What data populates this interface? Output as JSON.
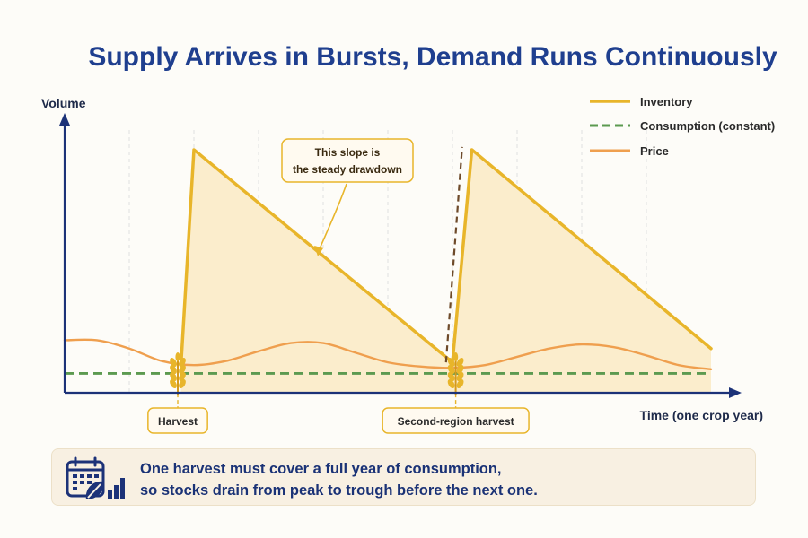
{
  "chart_data": {
    "type": "line",
    "title": "Supply Arrives in Bursts, Demand Runs Continuously",
    "ylabel": "Volume",
    "xlabel": "Time (one crop year)",
    "x_range": [
      0,
      10
    ],
    "y_range": [
      0,
      10
    ],
    "grid": "vertical dashed",
    "legend_position": "top-right",
    "series": [
      {
        "name": "Inventory",
        "style": "solid",
        "color": "#e8b52a",
        "points": [
          [
            1.8,
            1.0
          ],
          [
            2.0,
            8.8
          ],
          [
            6.0,
            1.1
          ],
          [
            6.3,
            8.8
          ],
          [
            10.0,
            1.6
          ]
        ]
      },
      {
        "name": "Consumption (constant)",
        "style": "dashed",
        "color": "#5c9a50",
        "points": [
          [
            0,
            0.7
          ],
          [
            10.0,
            0.7
          ]
        ]
      },
      {
        "name": "Price",
        "style": "solid",
        "color": "#ef9f4e",
        "points": [
          [
            0,
            1.9
          ],
          [
            0.5,
            1.9
          ],
          [
            1.0,
            1.6
          ],
          [
            1.5,
            1.15
          ],
          [
            2.0,
            1.0
          ],
          [
            2.5,
            1.15
          ],
          [
            3.0,
            1.5
          ],
          [
            3.5,
            1.8
          ],
          [
            4.0,
            1.8
          ],
          [
            4.5,
            1.45
          ],
          [
            5.0,
            1.1
          ],
          [
            5.5,
            0.95
          ],
          [
            6.0,
            0.9
          ],
          [
            6.5,
            1.0
          ],
          [
            7.0,
            1.3
          ],
          [
            7.5,
            1.6
          ],
          [
            8.0,
            1.75
          ],
          [
            8.5,
            1.65
          ],
          [
            9.0,
            1.35
          ],
          [
            9.5,
            1.0
          ],
          [
            10.0,
            0.85
          ]
        ]
      }
    ],
    "extra_marks": {
      "second_peak_dashed_color": "#6e4a2a",
      "second_peak_dashed_points": [
        [
          5.9,
          1.1
        ],
        [
          6.15,
          8.9
        ]
      ]
    },
    "events": [
      {
        "x": 1.75,
        "label": "Harvest",
        "icon": "wheat-icon"
      },
      {
        "x": 6.05,
        "label": "Second-region harvest",
        "icon": "wheat-icon"
      }
    ],
    "annotation": {
      "lines": [
        "This slope is",
        "the steady drawdown"
      ],
      "target": [
        4.0,
        5.2
      ]
    }
  },
  "footer": {
    "icon": "calendar-chart-icon",
    "line1": "One harvest must cover a full year of consumption,",
    "line2": "so stocks drain from peak to trough before the next one."
  },
  "colors": {
    "axis": "#1c3278",
    "fill": "#fbedcc",
    "grid": "#e0e0e0",
    "callout_border": "#e8b52a"
  }
}
